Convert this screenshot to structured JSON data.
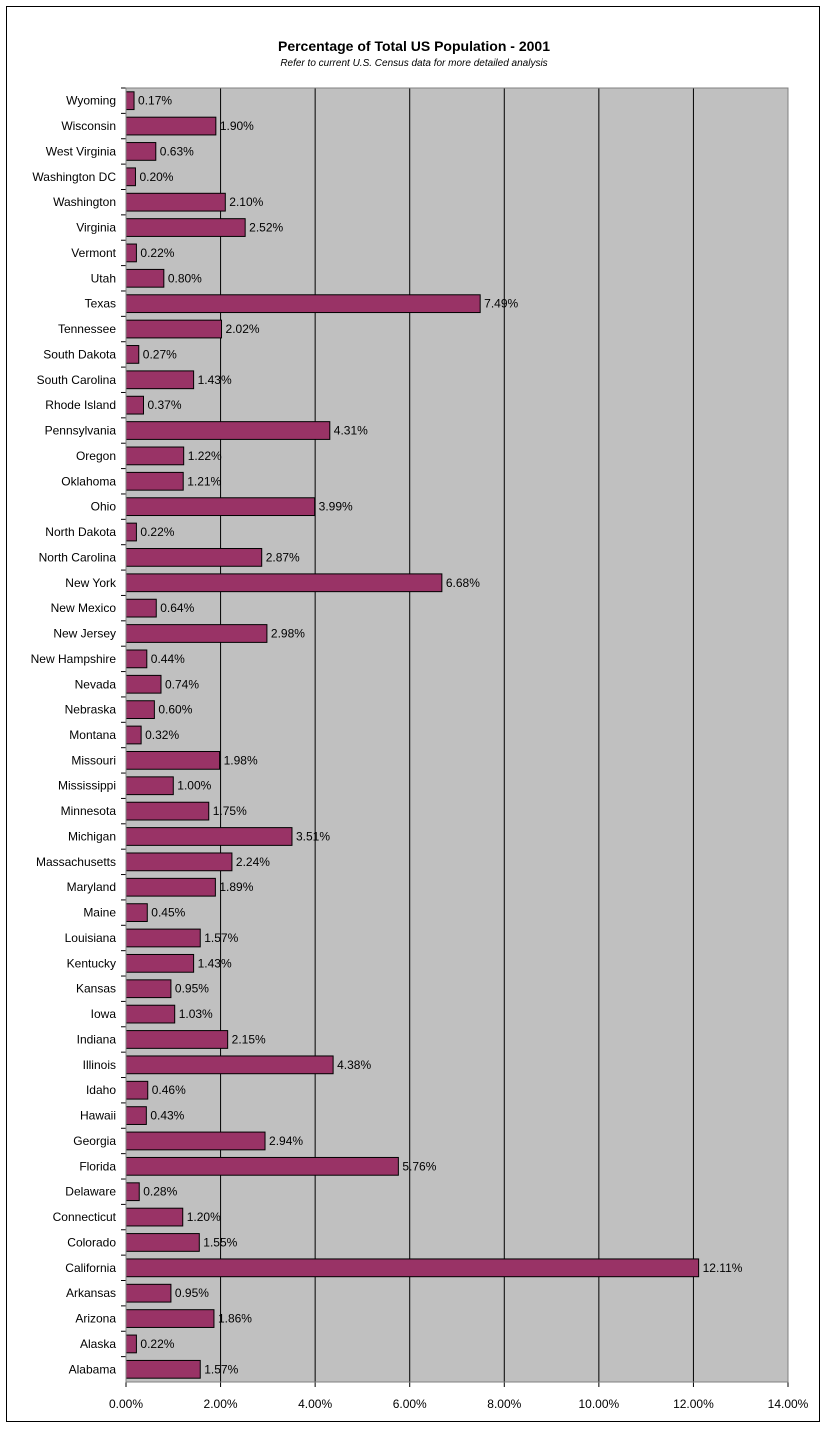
{
  "chart_data": {
    "type": "bar",
    "orientation": "horizontal",
    "title": "Percentage of Total US Population - 2001",
    "subtitle": "Refer to current U.S. Census data for more detailed analysis",
    "categories": [
      "Wyoming",
      "Wisconsin",
      "West Virginia",
      "Washington DC",
      "Washington",
      "Virginia",
      "Vermont",
      "Utah",
      "Texas",
      "Tennessee",
      "South Dakota",
      "South Carolina",
      "Rhode Island",
      "Pennsylvania",
      "Oregon",
      "Oklahoma",
      "Ohio",
      "North Dakota",
      "North Carolina",
      "New York",
      "New Mexico",
      "New Jersey",
      "New Hampshire",
      "Nevada",
      "Nebraska",
      "Montana",
      "Missouri",
      "Mississippi",
      "Minnesota",
      "Michigan",
      "Massachusetts",
      "Maryland",
      "Maine",
      "Louisiana",
      "Kentucky",
      "Kansas",
      "Iowa",
      "Indiana",
      "Illinois",
      "Idaho",
      "Hawaii",
      "Georgia",
      "Florida",
      "Delaware",
      "Connecticut",
      "Colorado",
      "California",
      "Arkansas",
      "Arizona",
      "Alaska",
      "Alabama"
    ],
    "values": [
      0.17,
      1.9,
      0.63,
      0.2,
      2.1,
      2.52,
      0.22,
      0.8,
      7.49,
      2.02,
      0.27,
      1.43,
      0.37,
      4.31,
      1.22,
      1.21,
      3.99,
      0.22,
      2.87,
      6.68,
      0.64,
      2.98,
      0.44,
      0.74,
      0.6,
      0.32,
      1.98,
      1.0,
      1.75,
      3.51,
      2.24,
      1.89,
      0.45,
      1.57,
      1.43,
      0.95,
      1.03,
      2.15,
      4.38,
      0.46,
      0.43,
      2.94,
      5.76,
      0.28,
      1.2,
      1.55,
      12.11,
      0.95,
      1.86,
      0.22,
      1.57
    ],
    "data_labels": [
      "0.17%",
      "1.90%",
      "0.63%",
      "0.20%",
      "2.10%",
      "2.52%",
      "0.22%",
      "0.80%",
      "7.49%",
      "2.02%",
      "0.27%",
      "1.43%",
      "0.37%",
      "4.31%",
      "1.22%",
      "1.21%",
      "3.99%",
      "0.22%",
      "2.87%",
      "6.68%",
      "0.64%",
      "2.98%",
      "0.44%",
      "0.74%",
      "0.60%",
      "0.32%",
      "1.98%",
      "1.00%",
      "1.75%",
      "3.51%",
      "2.24%",
      "1.89%",
      "0.45%",
      "1.57%",
      "1.43%",
      "0.95%",
      "1.03%",
      "2.15%",
      "4.38%",
      "0.46%",
      "0.43%",
      "2.94%",
      "5.76%",
      "0.28%",
      "1.20%",
      "1.55%",
      "12.11%",
      "0.95%",
      "1.86%",
      "0.22%",
      "1.57%"
    ],
    "xlim": [
      0,
      14
    ],
    "x_ticks": [
      "0.00%",
      "2.00%",
      "4.00%",
      "6.00%",
      "8.00%",
      "10.00%",
      "12.00%",
      "14.00%"
    ],
    "xlabel": "",
    "ylabel": "",
    "grid": "vertical major gridlines",
    "legend": "none",
    "colors": {
      "bar_fill": "#993366",
      "bar_outline": "#000000",
      "plot_background": "#c0c0c0",
      "gridline": "#000000"
    }
  }
}
